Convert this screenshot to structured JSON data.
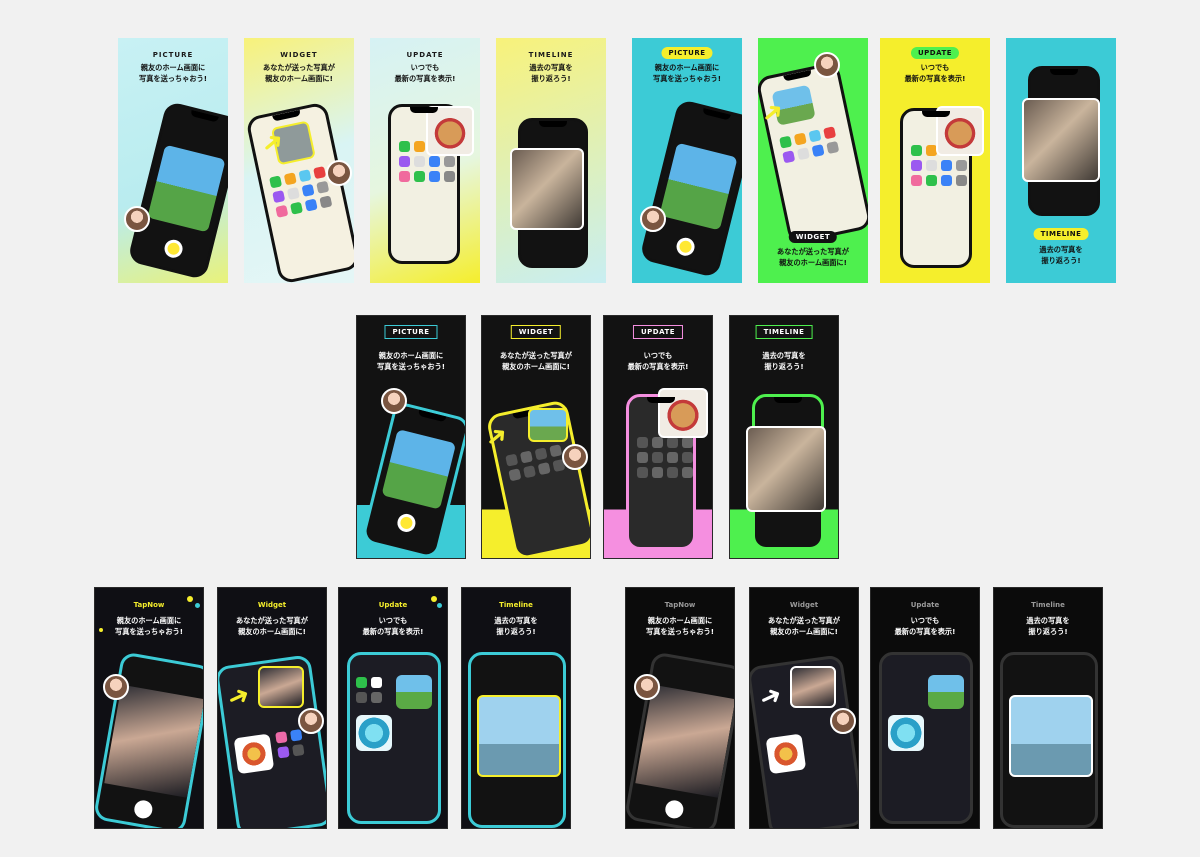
{
  "row1_left": [
    {
      "tag": "PICTURE",
      "caption": "親友のホーム画面に\n写真を送っちゃおう!"
    },
    {
      "tag": "WIDGET",
      "caption": "あなたが送った写真が\n親友のホーム画面に!"
    },
    {
      "tag": "UPDATE",
      "caption": "いつでも\n最新の写真を表示!"
    },
    {
      "tag": "TIMELINE",
      "caption": "過去の写真を\n振り返ろう!"
    }
  ],
  "row1_right": [
    {
      "tag": "PICTURE",
      "caption": "親友のホーム画面に\n写真を送っちゃおう!"
    },
    {
      "tag": "WIDGET",
      "caption": "あなたが送った写真が\n親友のホーム画面に!"
    },
    {
      "tag": "UPDATE",
      "caption": "いつでも\n最新の写真を表示!"
    },
    {
      "tag": "TIMELINE",
      "caption": "過去の写真を\n振り返ろう!"
    }
  ],
  "row2": [
    {
      "tag": "PICTURE",
      "caption": "親友のホーム画面に\n写真を送っちゃおう!"
    },
    {
      "tag": "WIDGET",
      "caption": "あなたが送った写真が\n親友のホーム画面に!"
    },
    {
      "tag": "UPDATE",
      "caption": "いつでも\n最新の写真を表示!"
    },
    {
      "tag": "TIMELINE",
      "caption": "過去の写真を\n振り返ろう!"
    }
  ],
  "row3_left": [
    {
      "tag": "TapNow",
      "caption": "親友のホーム画面に\n写真を送っちゃおう!"
    },
    {
      "tag": "Widget",
      "caption": "あなたが送った写真が\n親友のホーム画面に!"
    },
    {
      "tag": "Update",
      "caption": "いつでも\n最新の写真を表示!"
    },
    {
      "tag": "Timeline",
      "caption": "過去の写真を\n振り返ろう!"
    }
  ],
  "row3_right": [
    {
      "tag": "TapNow",
      "caption": "親友のホーム画面に\n写真を送っちゃおう!"
    },
    {
      "tag": "Widget",
      "caption": "あなたが送った写真が\n親友のホーム画面に!"
    },
    {
      "tag": "Update",
      "caption": "いつでも\n最新の写真を表示!"
    },
    {
      "tag": "Timeline",
      "caption": "過去の写真を\n振り返ろう!"
    }
  ],
  "colors": {
    "yellow": "#f5ee2c",
    "cyan": "#3ccbd6",
    "green": "#4ef04e",
    "pink": "#f58fe0",
    "dark": "#0f0f14"
  }
}
